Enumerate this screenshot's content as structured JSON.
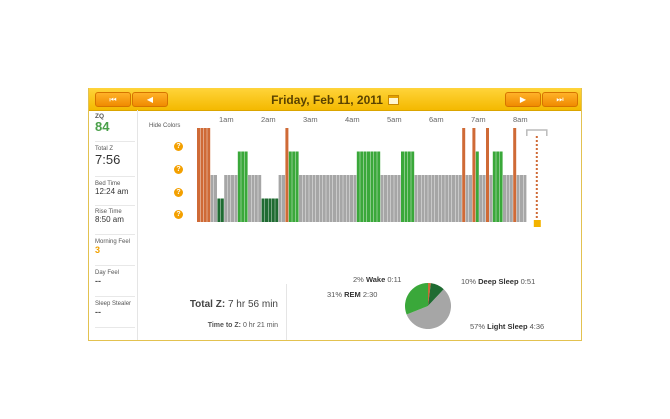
{
  "header": {
    "date": "Friday, Feb 11, 2011"
  },
  "nav": {
    "first": "⏮",
    "prev": "◀",
    "next": "▶",
    "last": "⏭"
  },
  "sidebar": {
    "zq": {
      "label": "ZQ",
      "value": "84"
    },
    "total_z": {
      "label": "Total Z",
      "value": "7:56"
    },
    "bed_time": {
      "label": "Bed Time",
      "value": "12:24 am"
    },
    "rise_time": {
      "label": "Rise Time",
      "value": "8:50 am"
    },
    "morning_feel": {
      "label": "Morning Feel",
      "value": "3"
    },
    "day_feel": {
      "label": "Day Feel",
      "value": "--"
    },
    "sleep_stealer": {
      "label": "Sleep Stealer",
      "value": "--"
    }
  },
  "legend": {
    "hide_colors": "Hide Colors",
    "items": [
      {
        "label": "Wake",
        "color": "#cf6a36"
      },
      {
        "label": "REM",
        "color": "#3aa83a"
      },
      {
        "label": "Light",
        "color": "#a6a6a6"
      },
      {
        "label": "Deep",
        "color": "#1f6b32"
      }
    ],
    "help": "?"
  },
  "hours": [
    "1am",
    "2am",
    "3am",
    "4am",
    "5am",
    "6am",
    "7am",
    "8am"
  ],
  "hypnogram": {
    "stages": [
      "wake",
      "wake",
      "wake",
      "wake",
      "light",
      "light",
      "deep",
      "deep",
      "light",
      "light",
      "light",
      "light",
      "rem",
      "rem",
      "rem",
      "light",
      "light",
      "light",
      "light",
      "deep",
      "deep",
      "deep",
      "deep",
      "deep",
      "light",
      "light",
      "wake",
      "rem",
      "rem",
      "rem",
      "light",
      "light",
      "light",
      "light",
      "light",
      "light",
      "light",
      "light",
      "light",
      "light",
      "light",
      "light",
      "light",
      "light",
      "light",
      "light",
      "light",
      "rem",
      "rem",
      "rem",
      "rem",
      "rem",
      "rem",
      "rem",
      "light",
      "light",
      "light",
      "light",
      "light",
      "light",
      "rem",
      "rem",
      "rem",
      "rem",
      "light",
      "light",
      "light",
      "light",
      "light",
      "light",
      "light",
      "light",
      "light",
      "light",
      "light",
      "light",
      "light",
      "light",
      "wake",
      "light",
      "light",
      "wake",
      "rem",
      "light",
      "light",
      "wake",
      "light",
      "rem",
      "rem",
      "rem",
      "light",
      "light",
      "light",
      "wake",
      "light",
      "light",
      "light"
    ],
    "scale": {
      "wake": 4,
      "rem": 3,
      "light": 2,
      "deep": 1
    }
  },
  "stats": {
    "total_z": {
      "label": "Total Z:",
      "value": "7 hr 56 min"
    },
    "time_to_z": {
      "label": "Time to Z:",
      "value": "0 hr 21 min"
    }
  },
  "pie": {
    "slices": [
      {
        "name": "Wake",
        "pct": "2%",
        "time": "0:11",
        "value": 2,
        "color": "#cf6a36"
      },
      {
        "name": "Deep Sleep",
        "pct": "10%",
        "time": "0:51",
        "value": 10,
        "color": "#1f6b32"
      },
      {
        "name": "Light Sleep",
        "pct": "57%",
        "time": "4:36",
        "value": 57,
        "color": "#a6a6a6"
      },
      {
        "name": "REM",
        "pct": "31%",
        "time": "2:30",
        "value": 31,
        "color": "#3aa83a"
      }
    ]
  }
}
